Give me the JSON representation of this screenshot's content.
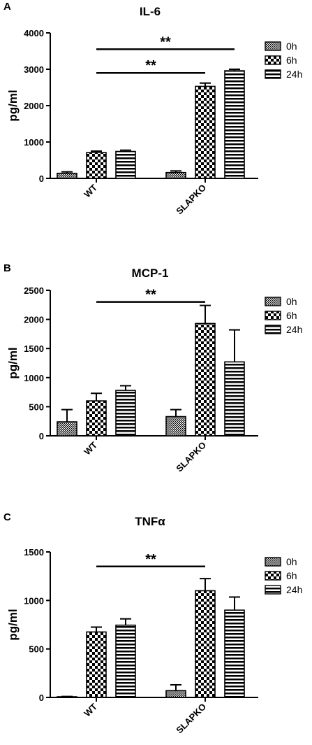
{
  "legend_entries": [
    "0h",
    "6h",
    "24h"
  ],
  "chart_data": [
    {
      "type": "bar",
      "panel": "A",
      "title": "IL-6",
      "ylabel": "pg/ml",
      "xlabel": "",
      "categories": [
        "WT",
        "SLAPKO"
      ],
      "ylim": [
        0,
        4000
      ],
      "yticks": [
        0,
        1000,
        2000,
        3000,
        4000
      ],
      "grid": false,
      "legend": "top-right",
      "series": [
        {
          "name": "0h",
          "values": [
            140,
            160
          ],
          "errors": [
            40,
            45
          ]
        },
        {
          "name": "6h",
          "values": [
            710,
            2530
          ],
          "errors": [
            40,
            90
          ]
        },
        {
          "name": "24h",
          "values": [
            740,
            2960
          ],
          "errors": [
            35,
            40
          ]
        }
      ],
      "significance": [
        {
          "label": "**",
          "from": [
            "WT",
            "6h"
          ],
          "to": [
            "SLAPKO",
            "6h"
          ],
          "y": 2900
        },
        {
          "label": "**",
          "from": [
            "WT",
            "6h"
          ],
          "to": [
            "SLAPKO",
            "24h"
          ],
          "y": 3550
        }
      ]
    },
    {
      "type": "bar",
      "panel": "B",
      "title": "MCP-1",
      "ylabel": "pg/ml",
      "xlabel": "",
      "categories": [
        "WT",
        "SLAPKO"
      ],
      "ylim": [
        0,
        2500
      ],
      "yticks": [
        0,
        500,
        1000,
        1500,
        2000,
        2500
      ],
      "grid": false,
      "legend": "top-right",
      "series": [
        {
          "name": "0h",
          "values": [
            240,
            330
          ],
          "errors": [
            210,
            120
          ]
        },
        {
          "name": "6h",
          "values": [
            600,
            1930
          ],
          "errors": [
            130,
            310
          ]
        },
        {
          "name": "24h",
          "values": [
            780,
            1270
          ],
          "errors": [
            80,
            550
          ]
        }
      ],
      "significance": [
        {
          "label": "**",
          "from": [
            "WT",
            "6h"
          ],
          "to": [
            "SLAPKO",
            "6h"
          ],
          "y": 2300
        }
      ]
    },
    {
      "type": "bar",
      "panel": "C",
      "title": "TNFα",
      "ylabel": "pg/ml",
      "xlabel": "",
      "categories": [
        "WT",
        "SLAPKO"
      ],
      "ylim": [
        0,
        1500
      ],
      "yticks": [
        0,
        500,
        1000,
        1500
      ],
      "grid": false,
      "legend": "top-right",
      "series": [
        {
          "name": "0h",
          "values": [
            5,
            70
          ],
          "errors": [
            5,
            60
          ]
        },
        {
          "name": "6h",
          "values": [
            675,
            1100
          ],
          "errors": [
            50,
            125
          ]
        },
        {
          "name": "24h",
          "values": [
            745,
            900
          ],
          "errors": [
            65,
            135
          ]
        }
      ],
      "significance": [
        {
          "label": "**",
          "from": [
            "WT",
            "6h"
          ],
          "to": [
            "SLAPKO",
            "6h"
          ],
          "y": 1350
        }
      ]
    }
  ]
}
